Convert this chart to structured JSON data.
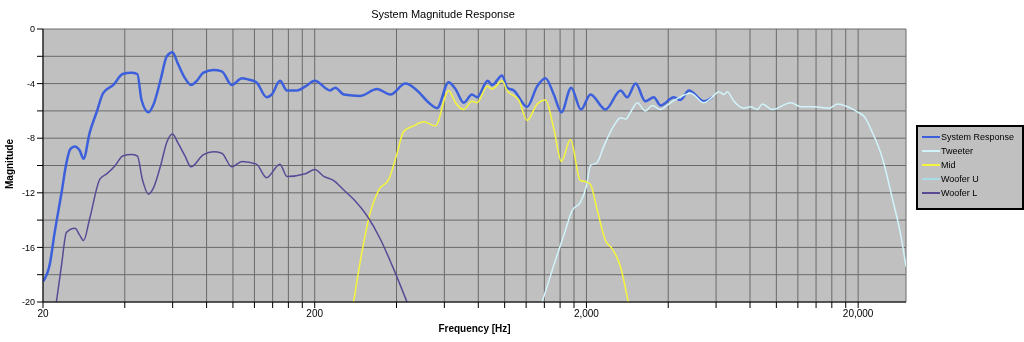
{
  "chart_data": {
    "type": "line",
    "title": "System Magnitude Response",
    "xlabel": "Frequency [Hz]",
    "ylabel": "Magnitude",
    "log": "x",
    "grid": true,
    "legend": "right",
    "marker": "none",
    "line_style": "solid",
    "xlim": [
      20,
      30000
    ],
    "ylim": [
      -20,
      0
    ],
    "xticks": [
      {
        "value": 20,
        "label": "20"
      },
      {
        "value": 40,
        "label": null
      },
      {
        "value": 60,
        "label": null
      },
      {
        "value": 80,
        "label": null
      },
      {
        "value": 100,
        "label": null
      },
      {
        "value": 120,
        "label": null
      },
      {
        "value": 140,
        "label": null
      },
      {
        "value": 160,
        "label": null
      },
      {
        "value": 180,
        "label": null
      },
      {
        "value": 200,
        "label": "200"
      },
      {
        "value": 400,
        "label": null
      },
      {
        "value": 600,
        "label": null
      },
      {
        "value": 800,
        "label": null
      },
      {
        "value": 1000,
        "label": null
      },
      {
        "value": 1200,
        "label": null
      },
      {
        "value": 1400,
        "label": null
      },
      {
        "value": 1600,
        "label": null
      },
      {
        "value": 1800,
        "label": null
      },
      {
        "value": 2000,
        "label": "2,000"
      },
      {
        "value": 4000,
        "label": null
      },
      {
        "value": 6000,
        "label": null
      },
      {
        "value": 8000,
        "label": null
      },
      {
        "value": 10000,
        "label": null
      },
      {
        "value": 12000,
        "label": null
      },
      {
        "value": 14000,
        "label": null
      },
      {
        "value": 16000,
        "label": null
      },
      {
        "value": 18000,
        "label": null
      },
      {
        "value": 20000,
        "label": "20,000"
      }
    ],
    "yticks": [
      {
        "value": -20,
        "label": "-20"
      },
      {
        "value": -18,
        "label": null
      },
      {
        "value": -16,
        "label": "-16"
      },
      {
        "value": -14,
        "label": null
      },
      {
        "value": -12,
        "label": "-12"
      },
      {
        "value": -10,
        "label": null
      },
      {
        "value": -8,
        "label": "-8"
      },
      {
        "value": -6,
        "label": null
      },
      {
        "value": -4,
        "label": "-4"
      },
      {
        "value": -2,
        "label": null
      },
      {
        "value": 0,
        "label": "0"
      }
    ],
    "series": [
      {
        "name": "System Response",
        "color": "#3c5fdc",
        "x": [
          20,
          21.2,
          22,
          23.4,
          24.4,
          25.2,
          26.2,
          27.3,
          28.2,
          29.7,
          31.5,
          33.3,
          36.3,
          39.3,
          42.3,
          44.5,
          46.1,
          48.9,
          51.1,
          54.2,
          57.1,
          59.9,
          62.6,
          66.6,
          70.1,
          73.6,
          77.9,
          84.8,
          91,
          99,
          108,
          114,
          122,
          133,
          139,
          149,
          158,
          172,
          185,
          200,
          228,
          238,
          256,
          294,
          339,
          380,
          431,
          476,
          526,
          564,
          622,
          659,
          707,
          758,
          792,
          867,
          899,
          979,
          1021,
          1081,
          1210,
          1317,
          1413,
          1517,
          1618,
          1757,
          1910,
          2070,
          2350,
          2670,
          2825,
          3034,
          3296,
          3540,
          3748,
          4196,
          4437,
          4766,
          5411,
          5808
        ],
        "values": [
          -18.5,
          -17.2,
          -15.1,
          -12,
          -9.8,
          -8.8,
          -8.6,
          -8.9,
          -9.5,
          -7.6,
          -6.1,
          -4.7,
          -4.1,
          -3.3,
          -3.2,
          -3.3,
          -5.2,
          -6.1,
          -5.5,
          -3.7,
          -2,
          -1.7,
          -2.5,
          -3.6,
          -4.1,
          -3.8,
          -3.2,
          -3,
          -3.1,
          -4.1,
          -3.6,
          -3.7,
          -3.9,
          -5,
          -4.8,
          -3.8,
          -4.5,
          -4.5,
          -4.2,
          -3.8,
          -4.5,
          -4.3,
          -4.8,
          -4.9,
          -4.4,
          -4.8,
          -4,
          -4.5,
          -5.4,
          -5.8,
          -3.9,
          -4.4,
          -5.4,
          -4.8,
          -5,
          -3.8,
          -4.1,
          -3.4,
          -4.3,
          -4.5,
          -5.7,
          -4.2,
          -3.6,
          -4.8,
          -6.1,
          -4.3,
          -5.9,
          -4.8,
          -5.9,
          -4.5,
          -5,
          -4,
          -5.3,
          -5,
          -5.6,
          -5,
          -5.2,
          -4.5,
          -5.3,
          -5
        ]
      },
      {
        "name": "Tweeter",
        "color": "#d0f4fa",
        "x": [
          1374,
          1517,
          1652,
          1772,
          1900,
          2000,
          2069,
          2188,
          2316,
          2521,
          2670,
          2788,
          2906,
          3077,
          3296,
          3490,
          3748,
          4021,
          4316,
          4833,
          5411,
          5730,
          6150,
          6415,
          6600,
          6980,
          7600,
          8040,
          8510,
          8880,
          9670,
          11300,
          12300,
          13770,
          15640,
          16790,
          18280,
          20000,
          21040,
          22590,
          24600,
          26780,
          28700,
          30000
        ],
        "values": [
          -20,
          -17.3,
          -15.1,
          -13.3,
          -12.7,
          -11.5,
          -10,
          -9.8,
          -8.6,
          -7.1,
          -6.5,
          -6.6,
          -6.1,
          -5.4,
          -6,
          -5.6,
          -5.9,
          -5.5,
          -5.1,
          -4.7,
          -5.4,
          -5.1,
          -4.6,
          -4.8,
          -4.6,
          -5.3,
          -5.8,
          -5.7,
          -5.9,
          -5.5,
          -5.9,
          -5.4,
          -5.7,
          -5.7,
          -5.8,
          -5.5,
          -5.7,
          -6.1,
          -6.4,
          -7.6,
          -9.5,
          -12.5,
          -15.1,
          -17.4
        ]
      },
      {
        "name": "Mid",
        "color": "#f5f53c",
        "x": [
          278,
          298,
          316,
          344,
          375,
          402,
          425,
          462,
          504,
          556,
          622,
          659,
          707,
          758,
          792,
          862,
          899,
          979,
          1021,
          1127,
          1210,
          1317,
          1413,
          1517,
          1618,
          1746,
          1900,
          2000,
          2070,
          2188,
          2350,
          2490,
          2667,
          2850
        ],
        "values": [
          -20,
          -16.4,
          -13.9,
          -11.8,
          -11,
          -9.1,
          -7.5,
          -7.1,
          -6.8,
          -7.1,
          -4.5,
          -5.4,
          -5.9,
          -5.3,
          -5.4,
          -4.2,
          -4.4,
          -3.8,
          -4.5,
          -5.2,
          -6.7,
          -5.5,
          -5.2,
          -7.3,
          -9.7,
          -8.1,
          -11.1,
          -11.2,
          -11.4,
          -13.2,
          -15.5,
          -16.1,
          -17.4,
          -20
        ]
      },
      {
        "name": "Woofer U",
        "color": "#a8dce6"
      },
      {
        "name": "Woofer L",
        "color": "#5a4a96",
        "x": [
          22.4,
          23.4,
          24.4,
          26.2,
          27.3,
          28.2,
          29.7,
          32.4,
          34.4,
          36.9,
          39.3,
          42.3,
          44.5,
          46.4,
          48.9,
          51.1,
          54.2,
          57.1,
          59.9,
          62.6,
          66.6,
          70.1,
          77.9,
          84.8,
          91,
          99,
          108,
          122,
          133,
          149,
          158,
          185,
          200,
          216,
          235,
          256,
          282,
          312,
          349,
          385,
          437
        ],
        "values": [
          -20,
          -17.3,
          -14.9,
          -14.6,
          -15.1,
          -15.5,
          -13.9,
          -11,
          -10.6,
          -10,
          -9.3,
          -9.2,
          -9.3,
          -11,
          -12.1,
          -11.6,
          -10,
          -8.3,
          -7.7,
          -8.3,
          -9.3,
          -10.1,
          -9.2,
          -9,
          -9.1,
          -10.1,
          -9.7,
          -9.9,
          -10.9,
          -9.9,
          -10.8,
          -10.6,
          -10.3,
          -10.8,
          -11.1,
          -11.8,
          -12.6,
          -13.7,
          -15.4,
          -17.3,
          -20
        ]
      }
    ]
  }
}
